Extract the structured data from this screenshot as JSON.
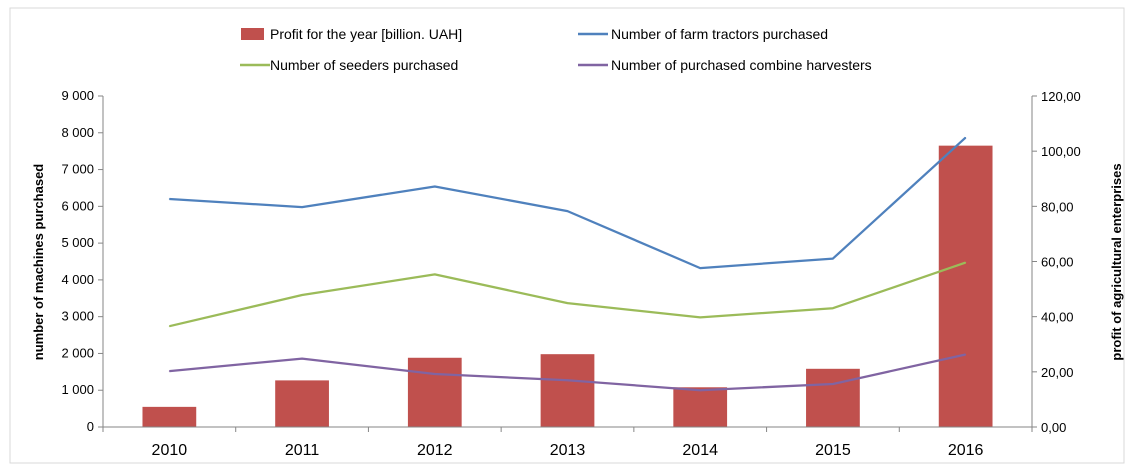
{
  "chart_data": {
    "type": "bar",
    "categories": [
      "2010",
      "2011",
      "2012",
      "2013",
      "2014",
      "2015",
      "2016"
    ],
    "bar_series": {
      "name": "Profit for the year [billion. UAH]",
      "axis": "right",
      "color": "#C0504D",
      "values": [
        7.3,
        16.9,
        25.1,
        26.4,
        14.4,
        21.1,
        102.0
      ]
    },
    "line_series": [
      {
        "name": "Number of farm tractors purchased",
        "axis": "left",
        "color": "#4F81BD",
        "values": [
          6200,
          5980,
          6540,
          5870,
          4320,
          4580,
          7870
        ]
      },
      {
        "name": "Number of seeders purchased",
        "axis": "left",
        "color": "#9BBB59",
        "values": [
          2740,
          3590,
          4150,
          3370,
          2980,
          3230,
          4470
        ]
      },
      {
        "name": "Number of purchased combine harvesters",
        "axis": "left",
        "color": "#8064A2",
        "values": [
          1520,
          1860,
          1440,
          1270,
          1000,
          1170,
          1970
        ]
      }
    ],
    "y_left": {
      "label": "number of machines purchased",
      "ylim": [
        0,
        9000
      ],
      "ticks": [
        "0",
        "1 000",
        "2 000",
        "3 000",
        "4 000",
        "5 000",
        "6 000",
        "7 000",
        "8 000",
        "9 000"
      ]
    },
    "y_right": {
      "label": "profit of agricultural enterprises",
      "ylim": [
        0,
        120
      ],
      "ticks": [
        "0,00",
        "20,00",
        "40,00",
        "60,00",
        "80,00",
        "100,00",
        "120,00"
      ]
    },
    "legend_position": "top",
    "grid": false
  }
}
